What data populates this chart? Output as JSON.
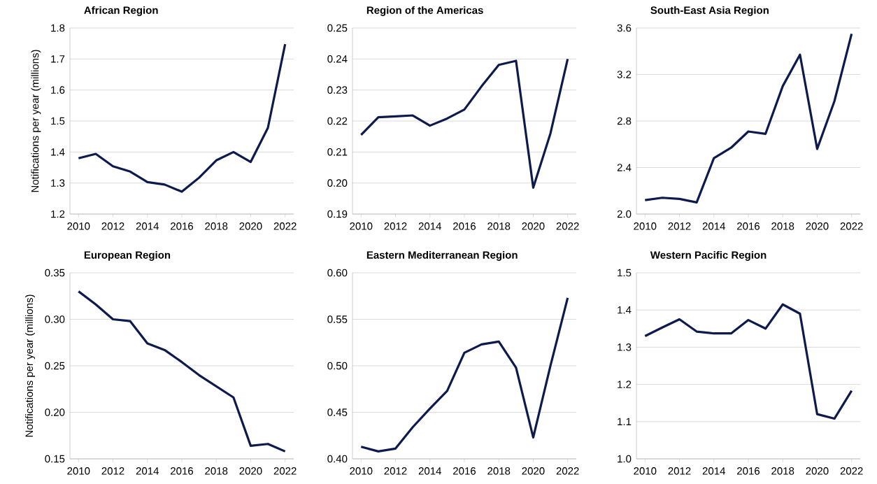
{
  "chart_data": [
    {
      "type": "line",
      "title": "African Region",
      "ylabel": "Notifications per year (millions)",
      "x": [
        2010,
        2011,
        2012,
        2013,
        2014,
        2015,
        2016,
        2017,
        2018,
        2019,
        2020,
        2021,
        2022
      ],
      "series": [
        {
          "color": "#0d1a4d",
          "values": [
            1.38,
            1.394,
            1.354,
            1.337,
            1.303,
            1.295,
            1.272,
            1.317,
            1.373,
            1.4,
            1.368,
            1.478,
            1.748
          ]
        }
      ],
      "xlim": [
        2009.5,
        2022.5
      ],
      "ylim": [
        1.2,
        1.8
      ],
      "xticks": [
        2010,
        2012,
        2014,
        2016,
        2018,
        2020,
        2022
      ],
      "yticks": [
        1.2,
        1.3,
        1.4,
        1.5,
        1.6,
        1.7,
        1.8
      ],
      "grid": "y"
    },
    {
      "type": "line",
      "title": "Region of the Americas",
      "x": [
        2010,
        2011,
        2012,
        2013,
        2014,
        2015,
        2016,
        2017,
        2018,
        2019,
        2020,
        2021,
        2022
      ],
      "series": [
        {
          "color": "#0d1a4d",
          "values": [
            0.2155,
            0.2212,
            0.2215,
            0.2218,
            0.2185,
            0.2208,
            0.2237,
            0.2312,
            0.2381,
            0.2394,
            0.1985,
            0.216,
            0.24
          ]
        }
      ],
      "xlim": [
        2009.5,
        2022.5
      ],
      "ylim": [
        0.19,
        0.25
      ],
      "xticks": [
        2010,
        2012,
        2014,
        2016,
        2018,
        2020,
        2022
      ],
      "yticks": [
        0.19,
        {
          "value": 0.2,
          "label": "0.20"
        },
        0.21,
        0.22,
        0.23,
        0.24,
        0.25
      ],
      "grid": "y"
    },
    {
      "type": "line",
      "title": "South-East Asia Region",
      "x": [
        2010,
        2011,
        2012,
        2013,
        2014,
        2015,
        2016,
        2017,
        2018,
        2019,
        2020,
        2021,
        2022
      ],
      "series": [
        {
          "color": "#0d1a4d",
          "values": [
            2.12,
            2.14,
            2.13,
            2.1,
            2.48,
            2.57,
            2.71,
            2.69,
            3.1,
            3.37,
            2.56,
            2.97,
            3.55
          ]
        }
      ],
      "xlim": [
        2009.5,
        2022.5
      ],
      "ylim": [
        2.0,
        3.6
      ],
      "xticks": [
        2010,
        2012,
        2014,
        2016,
        2018,
        2020,
        2022
      ],
      "yticks": [
        {
          "value": 2,
          "label": "2.0"
        },
        2.4,
        2.8,
        3.2,
        3.6
      ],
      "grid": "y"
    },
    {
      "type": "line",
      "title": "European Region",
      "ylabel": "Notifications per year (millions)",
      "x": [
        2010,
        2011,
        2012,
        2013,
        2014,
        2015,
        2016,
        2017,
        2018,
        2019,
        2020,
        2021,
        2022
      ],
      "series": [
        {
          "color": "#0d1a4d",
          "values": [
            0.33,
            0.316,
            0.3,
            0.298,
            0.274,
            0.267,
            0.254,
            0.24,
            0.228,
            0.216,
            0.164,
            0.166,
            0.158
          ]
        }
      ],
      "xlim": [
        2009.5,
        2022.5
      ],
      "ylim": [
        0.15,
        0.35
      ],
      "xticks": [
        2010,
        2012,
        2014,
        2016,
        2018,
        2020,
        2022
      ],
      "yticks": [
        0.15,
        {
          "value": 0.2,
          "label": "0.20"
        },
        0.25,
        {
          "value": 0.3,
          "label": "0.30"
        },
        0.35
      ],
      "grid": "y"
    },
    {
      "type": "line",
      "title": "Eastern Mediterranean Region",
      "x": [
        2010,
        2011,
        2012,
        2013,
        2014,
        2015,
        2016,
        2017,
        2018,
        2019,
        2020,
        2021,
        2022
      ],
      "series": [
        {
          "color": "#0d1a4d",
          "values": [
            0.413,
            0.408,
            0.411,
            0.434,
            0.454,
            0.473,
            0.514,
            0.523,
            0.526,
            0.498,
            0.423,
            0.5,
            0.573
          ]
        }
      ],
      "xlim": [
        2009.5,
        2022.5
      ],
      "ylim": [
        0.4,
        0.6
      ],
      "xticks": [
        2010,
        2012,
        2014,
        2016,
        2018,
        2020,
        2022
      ],
      "yticks": [
        {
          "value": 0.4,
          "label": "0.40"
        },
        0.45,
        {
          "value": 0.5,
          "label": "0.50"
        },
        0.55,
        {
          "value": 0.6,
          "label": "0.60"
        }
      ],
      "grid": "y"
    },
    {
      "type": "line",
      "title": "Western Pacific Region",
      "x": [
        2010,
        2011,
        2012,
        2013,
        2014,
        2015,
        2016,
        2017,
        2018,
        2019,
        2020,
        2021,
        2022
      ],
      "series": [
        {
          "color": "#0d1a4d",
          "values": [
            1.33,
            1.353,
            1.375,
            1.342,
            1.337,
            1.337,
            1.373,
            1.35,
            1.415,
            1.39,
            1.12,
            1.108,
            1.183
          ]
        }
      ],
      "xlim": [
        2009.5,
        2022.5
      ],
      "ylim": [
        1.0,
        1.5
      ],
      "xticks": [
        2010,
        2012,
        2014,
        2016,
        2018,
        2020,
        2022
      ],
      "yticks": [
        {
          "value": 1,
          "label": "1.0"
        },
        1.1,
        1.2,
        1.3,
        1.4,
        1.5
      ],
      "grid": "y"
    }
  ]
}
